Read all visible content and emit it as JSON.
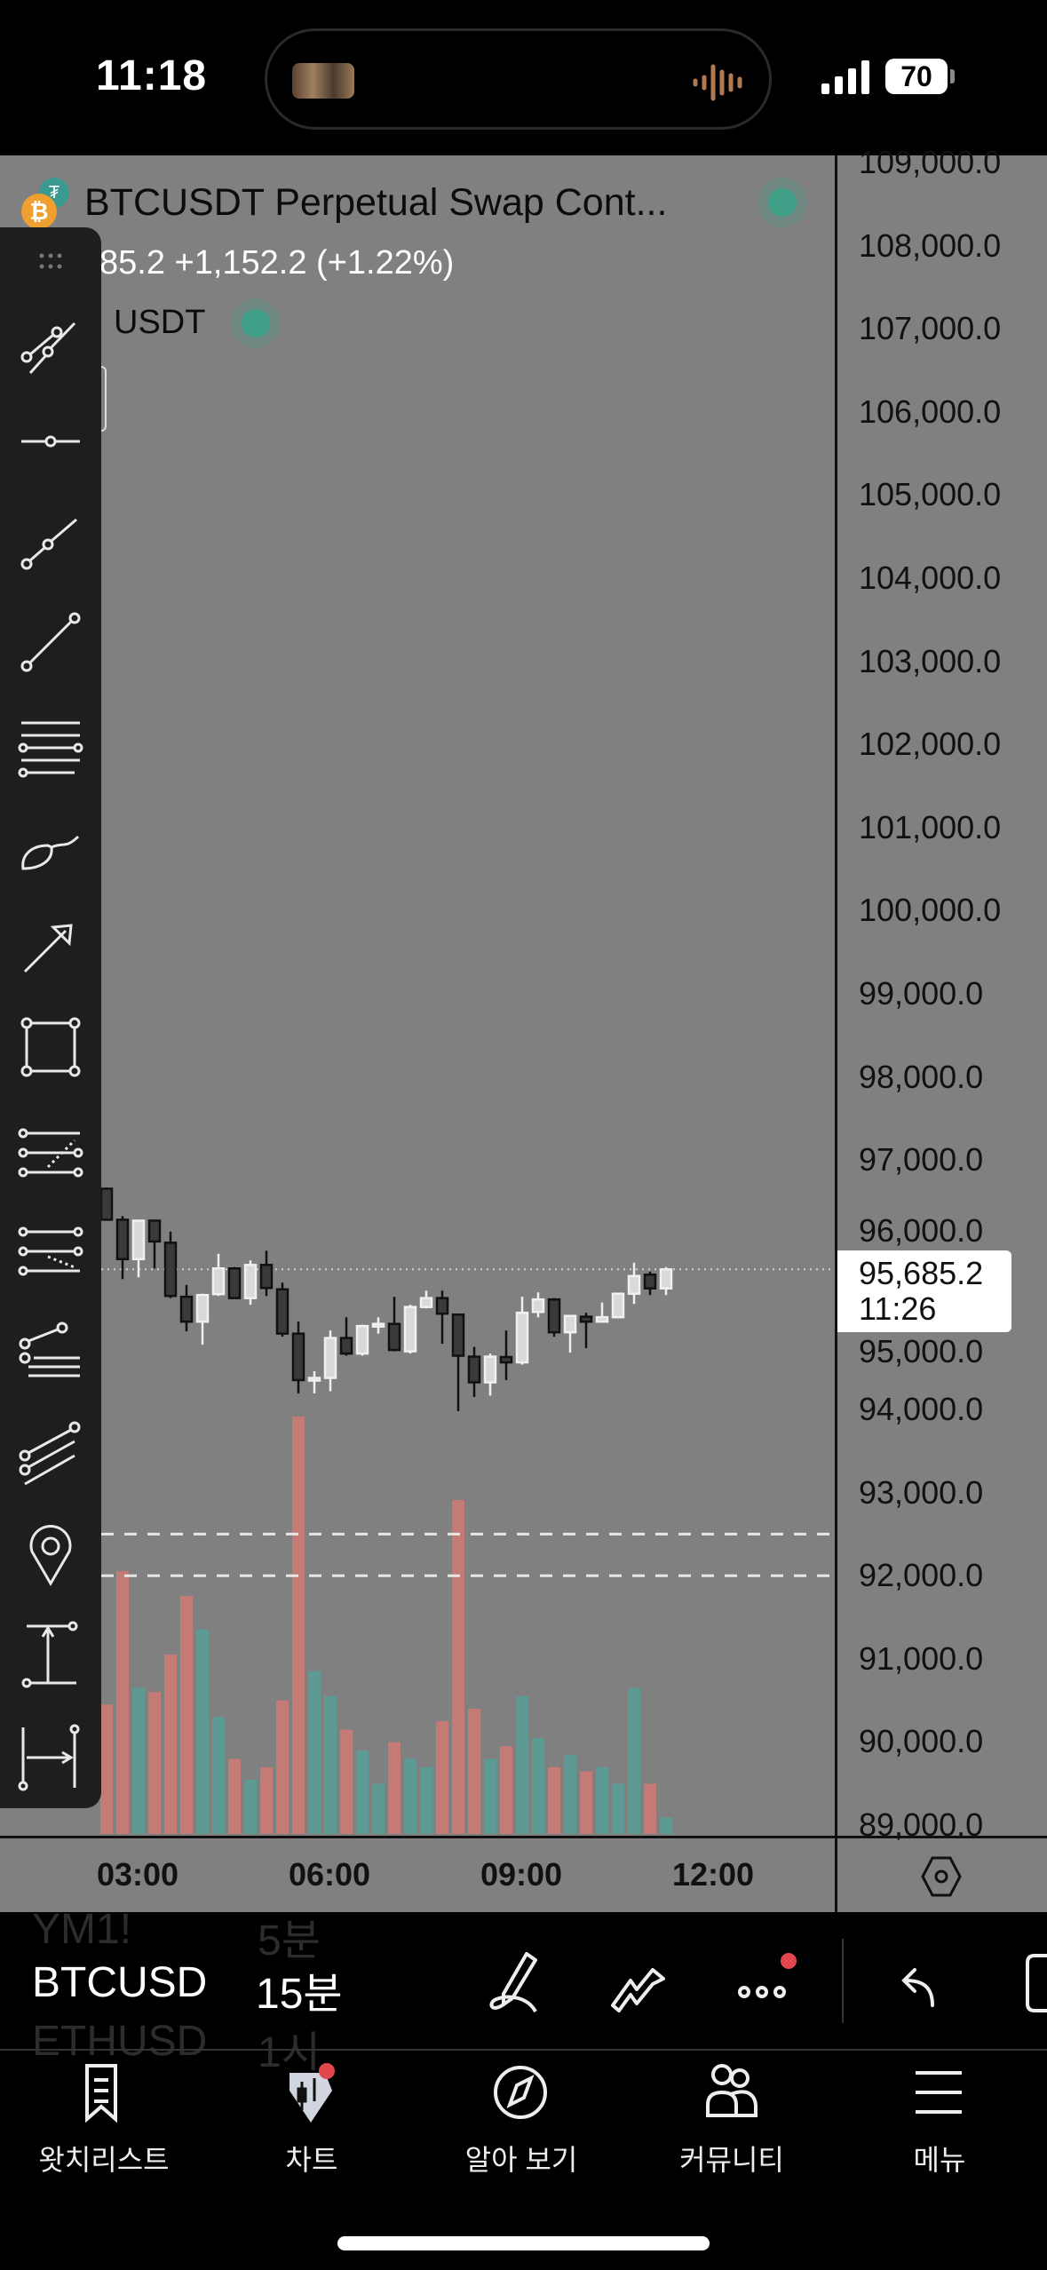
{
  "status_bar": {
    "time": "11:18",
    "battery": "70"
  },
  "header": {
    "title": "BTCUSDT Perpetual Swap Cont...",
    "price_change": "85.2 +1,152.2 (+1.22%)",
    "currency": "USDT"
  },
  "colors": {
    "chart_bg": "#808080",
    "bull_volume": "#5e9a94",
    "bear_volume": "#c47a75",
    "bull_candle": "#d9d9d9",
    "bear_candle": "#3a3a3a",
    "accent_red": "#e0474c",
    "status_green": "#3f9e86"
  },
  "toolbar": {
    "icons": [
      "drag-handle-icon",
      "trend-line-icon",
      "horizontal-ray-icon",
      "ray-icon",
      "line-segment-icon",
      "parallel-lines-icon",
      "brush-icon",
      "arrow-icon",
      "rectangle-icon",
      "fib-retracement-icon",
      "fib-extension-icon",
      "pitchfork-icon",
      "parallel-channel-icon",
      "pin-icon",
      "price-range-icon",
      "date-range-icon"
    ]
  },
  "price_axis": {
    "labels": [
      "109,000.0",
      "108,000.0",
      "107,000.0",
      "106,000.0",
      "105,000.0",
      "104,000.0",
      "103,000.0",
      "102,000.0",
      "101,000.0",
      "100,000.0",
      "99,000.0",
      "98,000.0",
      "97,000.0",
      "96,000.0",
      "95,000.0",
      "94,000.0",
      "93,000.0",
      "92,000.0",
      "91,000.0",
      "90,000.0",
      "89,000.0"
    ]
  },
  "current_price": {
    "price": "95,685.2",
    "countdown": "11:26"
  },
  "time_axis": {
    "labels": [
      "03:00",
      "06:00",
      "09:00",
      "12:00"
    ]
  },
  "chart_data": {
    "type": "candlestick",
    "interval": "15분",
    "first_candle_time": "02:30",
    "ylim": [
      89000,
      109000
    ],
    "horizontal_lines": [
      92500,
      92000
    ],
    "current_price_line": 95685.2,
    "candles": [
      [
        96655,
        96671,
        96271,
        96282
      ],
      [
        96282,
        96325,
        95568,
        95808
      ],
      [
        95808,
        96282,
        95589,
        96271
      ],
      [
        96271,
        96282,
        95696,
        96021
      ],
      [
        96005,
        96138,
        95339,
        95365
      ],
      [
        95355,
        95498,
        94939,
        95056
      ],
      [
        95056,
        95392,
        94779,
        95376
      ],
      [
        95387,
        95872,
        95365,
        95696
      ],
      [
        95696,
        95712,
        95339,
        95339
      ],
      [
        95339,
        95792,
        95259,
        95738
      ],
      [
        95738,
        95909,
        95365,
        95461
      ],
      [
        95445,
        95525,
        94875,
        94912
      ],
      [
        94912,
        95056,
        94193,
        94353
      ],
      [
        94363,
        94459,
        94193,
        94379
      ],
      [
        94379,
        94949,
        94219,
        94859
      ],
      [
        94859,
        95109,
        94646,
        94672
      ],
      [
        94672,
        95019,
        94646,
        95003
      ],
      [
        95013,
        95109,
        94912,
        95029
      ],
      [
        95029,
        95355,
        94699,
        94715
      ],
      [
        94699,
        95259,
        94672,
        95232
      ],
      [
        95232,
        95429,
        95216,
        95339
      ],
      [
        95339,
        95429,
        94790,
        95152
      ],
      [
        95141,
        95141,
        93979,
        94646
      ],
      [
        94635,
        94753,
        94150,
        94326
      ],
      [
        94326,
        94672,
        94166,
        94635
      ],
      [
        94630,
        94949,
        94353,
        94566
      ],
      [
        94566,
        95355,
        94539,
        95163
      ],
      [
        95173,
        95408,
        95109,
        95323
      ],
      [
        95323,
        95339,
        94875,
        94928
      ],
      [
        94928,
        95125,
        94683,
        95125
      ],
      [
        95115,
        95163,
        94736,
        95056
      ],
      [
        95056,
        95285,
        95045,
        95109
      ],
      [
        95109,
        95392,
        95099,
        95392
      ],
      [
        95392,
        95765,
        95269,
        95605
      ],
      [
        95621,
        95658,
        95376,
        95456
      ],
      [
        95456,
        95712,
        95376,
        95685
      ]
    ],
    "volume_relative_pct": [
      31,
      63,
      35,
      34,
      43,
      57,
      49,
      28,
      18,
      13,
      16,
      32,
      100,
      39,
      33,
      25,
      20,
      12,
      22,
      18,
      16,
      27,
      80,
      30,
      18,
      21,
      33,
      23,
      16,
      19,
      15,
      16,
      12,
      35,
      12,
      4
    ]
  },
  "bottom_toolbar": {
    "symbol_prev": "YM1!",
    "interval_prev": "5분",
    "symbol": "BTCUSD",
    "interval": "15분",
    "symbol_next": "ETHUSD",
    "interval_next": "1시"
  },
  "tabs": [
    {
      "label": "왓치리스트",
      "icon": "watchlist-icon"
    },
    {
      "label": "차트",
      "icon": "chart-icon"
    },
    {
      "label": "알아 보기",
      "icon": "compass-icon"
    },
    {
      "label": "커뮤니티",
      "icon": "community-icon"
    },
    {
      "label": "메뉴",
      "icon": "menu-icon"
    }
  ]
}
